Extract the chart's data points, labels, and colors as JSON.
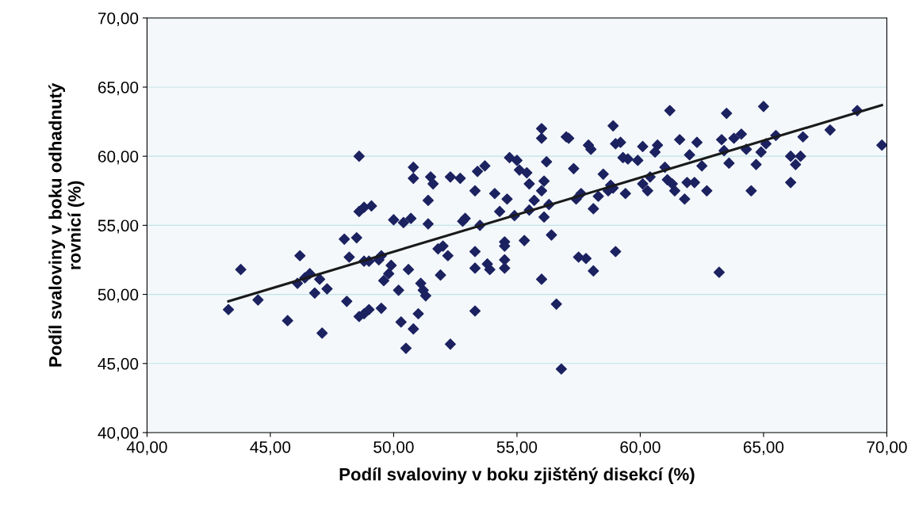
{
  "chart_data": {
    "type": "scatter",
    "xlabel": "Podíl svaloviny v boku zjištěný disekcí (%)",
    "ylabel": "Podíl svaloviny v boku odhadnutý\nrovnicí (%)",
    "xlim": [
      40,
      70
    ],
    "ylim": [
      40,
      70
    ],
    "xticks": [
      {
        "value": 40,
        "label": "40,00"
      },
      {
        "value": 45,
        "label": "45,00"
      },
      {
        "value": 50,
        "label": "50,00"
      },
      {
        "value": 55,
        "label": "55,00"
      },
      {
        "value": 60,
        "label": "60,00"
      },
      {
        "value": 65,
        "label": "65,00"
      },
      {
        "value": 70,
        "label": "70,00"
      }
    ],
    "yticks": [
      {
        "value": 40,
        "label": "40,00"
      },
      {
        "value": 45,
        "label": "45,00"
      },
      {
        "value": 50,
        "label": "50,00"
      },
      {
        "value": 55,
        "label": "55,00"
      },
      {
        "value": 60,
        "label": "60,00"
      },
      {
        "value": 65,
        "label": "65,00"
      },
      {
        "value": 70,
        "label": "70,00"
      }
    ],
    "grid": "y",
    "marker": "diamond",
    "legend": false,
    "series": [
      {
        "color": "#1c2260",
        "x": [
          43.3,
          43.8,
          44.5,
          45.7,
          46.1,
          46.2,
          46.4,
          46.6,
          46.8,
          47.0,
          47.1,
          47.3,
          48.0,
          48.1,
          48.2,
          48.5,
          48.6,
          48.6,
          48.6,
          48.8,
          48.8,
          48.8,
          49.0,
          49.0,
          49.1,
          49.4,
          49.5,
          49.5,
          49.6,
          49.8,
          49.9,
          50.0,
          50.2,
          50.3,
          50.4,
          50.5,
          50.6,
          50.7,
          50.8,
          50.8,
          50.8,
          51.0,
          51.1,
          51.2,
          51.3,
          51.4,
          51.4,
          51.5,
          51.6,
          51.8,
          51.9,
          52.0,
          52.2,
          52.3,
          52.3,
          52.7,
          52.8,
          52.9,
          53.3,
          53.3,
          53.3,
          53.3,
          53.4,
          53.5,
          53.7,
          53.8,
          53.9,
          54.1,
          54.3,
          54.5,
          54.5,
          54.5,
          54.5,
          54.6,
          54.7,
          54.9,
          55.0,
          55.1,
          55.3,
          55.4,
          55.5,
          55.5,
          55.7,
          56.0,
          56.0,
          56.0,
          56.0,
          56.1,
          56.1,
          56.2,
          56.3,
          56.4,
          56.6,
          56.8,
          57.0,
          57.1,
          57.3,
          57.4,
          57.5,
          57.6,
          57.8,
          57.9,
          58.0,
          58.1,
          58.1,
          58.3,
          58.5,
          58.7,
          58.8,
          58.9,
          58.9,
          59.0,
          59.0,
          59.2,
          59.3,
          59.4,
          59.5,
          59.9,
          60.1,
          60.1,
          60.3,
          60.4,
          60.6,
          60.7,
          61.0,
          61.1,
          61.2,
          61.3,
          61.4,
          61.6,
          61.8,
          61.9,
          62.0,
          62.2,
          62.3,
          62.5,
          62.7,
          63.2,
          63.3,
          63.4,
          63.5,
          63.6,
          63.8,
          64.1,
          64.3,
          64.5,
          64.7,
          64.9,
          65.0,
          65.1,
          65.5,
          66.1,
          66.1,
          66.3,
          66.5,
          66.6,
          67.7,
          68.8,
          69.8
        ],
        "values": [
          48.9,
          51.8,
          49.6,
          48.1,
          50.8,
          52.8,
          51.2,
          51.5,
          50.1,
          51.1,
          47.2,
          50.4,
          54.0,
          49.5,
          52.7,
          54.1,
          48.4,
          56.0,
          60.0,
          56.3,
          52.4,
          48.6,
          52.4,
          48.9,
          56.4,
          52.5,
          52.8,
          49.0,
          51.0,
          51.5,
          52.1,
          55.4,
          50.3,
          48.0,
          55.2,
          46.1,
          51.8,
          55.5,
          58.4,
          59.2,
          47.5,
          48.6,
          50.8,
          50.3,
          49.9,
          55.1,
          56.8,
          58.5,
          58.0,
          53.3,
          51.4,
          53.5,
          52.8,
          46.4,
          58.5,
          58.4,
          55.3,
          55.5,
          53.1,
          51.9,
          48.8,
          57.5,
          58.9,
          55.0,
          59.3,
          52.2,
          51.8,
          57.3,
          56.0,
          53.8,
          53.5,
          52.5,
          51.9,
          56.9,
          59.9,
          55.7,
          59.7,
          59.0,
          53.9,
          58.8,
          58.0,
          56.1,
          56.8,
          57.5,
          62.0,
          61.3,
          51.1,
          58.2,
          55.6,
          59.6,
          56.5,
          54.3,
          49.3,
          44.6,
          61.4,
          61.3,
          59.1,
          56.9,
          52.7,
          57.3,
          52.6,
          60.8,
          60.5,
          56.2,
          51.7,
          57.1,
          58.7,
          57.5,
          57.9,
          62.2,
          57.7,
          53.1,
          60.9,
          61.0,
          59.9,
          57.3,
          59.8,
          59.7,
          60.7,
          58.0,
          57.5,
          58.5,
          60.3,
          60.8,
          59.2,
          58.3,
          63.3,
          58.0,
          57.5,
          61.2,
          56.9,
          58.1,
          60.1,
          58.1,
          61.0,
          59.3,
          57.5,
          51.6,
          61.2,
          60.4,
          63.1,
          59.5,
          61.3,
          61.6,
          60.5,
          57.5,
          59.4,
          60.3,
          63.6,
          60.9,
          61.5,
          60.0,
          58.1,
          59.4,
          60.0,
          61.4,
          61.9,
          63.3,
          60.8
        ]
      },
      {
        "type": "line",
        "color": "#1a1a1a",
        "marker": "none",
        "x": [
          43.3,
          69.8
        ],
        "values": [
          49.5,
          63.7
        ]
      }
    ]
  }
}
